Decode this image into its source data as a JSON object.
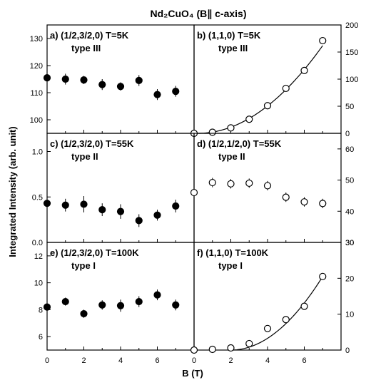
{
  "figure": {
    "title": "Nd₂CuO₄ (B∥ c-axis)",
    "xlabel": "B (T)",
    "ylabel": "Integrated Intensity (arb. unit)",
    "x_ticks": [
      "0",
      "2",
      "4",
      "6"
    ]
  },
  "chart_data": [
    {
      "id": "a",
      "type": "scatter",
      "label_line1": "a) (1/2,3/2,0)  T=5K",
      "label_line2": "type III",
      "axis_side": "left",
      "ylim": [
        95,
        135
      ],
      "yticks": [
        100,
        110,
        120,
        130
      ],
      "xlim": [
        0,
        8
      ],
      "marker": "filled",
      "points": [
        {
          "x": 0,
          "y": 115.5,
          "err": 2.0
        },
        {
          "x": 1,
          "y": 115.0,
          "err": 2.0
        },
        {
          "x": 2,
          "y": 114.7,
          "err": 1.5
        },
        {
          "x": 3,
          "y": 113.0,
          "err": 2.0
        },
        {
          "x": 4,
          "y": 112.3,
          "err": 1.5
        },
        {
          "x": 5,
          "y": 114.5,
          "err": 2.0
        },
        {
          "x": 6,
          "y": 109.3,
          "err": 2.0
        },
        {
          "x": 7,
          "y": 110.5,
          "err": 2.0
        }
      ]
    },
    {
      "id": "b",
      "type": "scatter",
      "label_line1": "b) (1,1,0)  T=5K",
      "label_line2": "type III",
      "axis_side": "right",
      "ylim": [
        0,
        200
      ],
      "yticks": [
        0,
        50,
        100,
        150,
        200
      ],
      "xlim": [
        0,
        8
      ],
      "marker": "open",
      "points": [
        {
          "x": 0,
          "y": 0
        },
        {
          "x": 1,
          "y": 2
        },
        {
          "x": 2,
          "y": 10
        },
        {
          "x": 3,
          "y": 26
        },
        {
          "x": 4,
          "y": 51
        },
        {
          "x": 5,
          "y": 83
        },
        {
          "x": 6,
          "y": 116
        },
        {
          "x": 7,
          "y": 171
        }
      ],
      "fit": {
        "kind": "quadratic",
        "a": 3.5,
        "x0": 0.2,
        "x_start": 0.2,
        "x_end": 7
      }
    },
    {
      "id": "c",
      "type": "scatter",
      "label_line1": "c) (1/2,3/2,0)  T=55K",
      "label_line2": "type II",
      "axis_side": "left",
      "ylim": [
        0,
        1.2
      ],
      "yticks": [
        0.0,
        0.5,
        1.0
      ],
      "ytick_labels": [
        "0.0",
        "0.5",
        "1.0"
      ],
      "xlim": [
        0,
        8
      ],
      "marker": "filled",
      "points": [
        {
          "x": 0,
          "y": 0.43,
          "err": 0.07
        },
        {
          "x": 1,
          "y": 0.41,
          "err": 0.07
        },
        {
          "x": 2,
          "y": 0.42,
          "err": 0.09
        },
        {
          "x": 3,
          "y": 0.36,
          "err": 0.07
        },
        {
          "x": 4,
          "y": 0.34,
          "err": 0.08
        },
        {
          "x": 5,
          "y": 0.24,
          "err": 0.07
        },
        {
          "x": 6,
          "y": 0.3,
          "err": 0.06
        },
        {
          "x": 7,
          "y": 0.4,
          "err": 0.07
        }
      ]
    },
    {
      "id": "d",
      "type": "scatter",
      "label_line1": "d) (1/2,1/2,0)  T=55K",
      "label_line2": "type II",
      "axis_side": "right",
      "ylim": [
        30,
        65
      ],
      "yticks": [
        30,
        40,
        50,
        60
      ],
      "xlim": [
        0,
        8
      ],
      "marker": "open",
      "points": [
        {
          "x": 0,
          "y": 46.0,
          "err": 0
        },
        {
          "x": 1,
          "y": 49.2,
          "err": 1.5
        },
        {
          "x": 2,
          "y": 48.8,
          "err": 1.5
        },
        {
          "x": 3,
          "y": 49.0,
          "err": 1.5
        },
        {
          "x": 4,
          "y": 48.2,
          "err": 1.5
        },
        {
          "x": 5,
          "y": 44.5,
          "err": 1.5
        },
        {
          "x": 6,
          "y": 43.0,
          "err": 1.5
        },
        {
          "x": 7,
          "y": 42.5,
          "err": 1.5
        }
      ]
    },
    {
      "id": "e",
      "type": "scatter",
      "label_line1": "e) (1/2,3/2,0)  T=100K",
      "label_line2": "type I",
      "axis_side": "left",
      "ylim": [
        5,
        13
      ],
      "yticks": [
        6,
        8,
        10,
        12
      ],
      "xlim": [
        0,
        8
      ],
      "marker": "filled",
      "points": [
        {
          "x": 0,
          "y": 8.2,
          "err": 0.4
        },
        {
          "x": 1,
          "y": 8.6,
          "err": 0.3
        },
        {
          "x": 2,
          "y": 7.7,
          "err": 0.3
        },
        {
          "x": 3,
          "y": 8.35,
          "err": 0.35
        },
        {
          "x": 4,
          "y": 8.3,
          "err": 0.45
        },
        {
          "x": 5,
          "y": 8.6,
          "err": 0.4
        },
        {
          "x": 6,
          "y": 9.1,
          "err": 0.4
        },
        {
          "x": 7,
          "y": 8.35,
          "err": 0.4
        }
      ]
    },
    {
      "id": "f",
      "type": "scatter",
      "label_line1": "f) (1,1,0)  T=100K",
      "label_line2": "type I",
      "axis_side": "right",
      "ylim": [
        0,
        30
      ],
      "yticks": [
        0,
        10,
        20,
        30
      ],
      "xlim": [
        0,
        8
      ],
      "marker": "open",
      "points": [
        {
          "x": 0,
          "y": 0
        },
        {
          "x": 1,
          "y": 0.2
        },
        {
          "x": 2,
          "y": 0.6
        },
        {
          "x": 3,
          "y": 1.8
        },
        {
          "x": 4,
          "y": 6.0
        },
        {
          "x": 5,
          "y": 8.5
        },
        {
          "x": 6,
          "y": 12.2
        },
        {
          "x": 7,
          "y": 20.5
        }
      ],
      "fit": {
        "kind": "quadratic",
        "a": 0.82,
        "x0": 2.0,
        "x_start": 2.0,
        "x_end": 7
      }
    }
  ]
}
